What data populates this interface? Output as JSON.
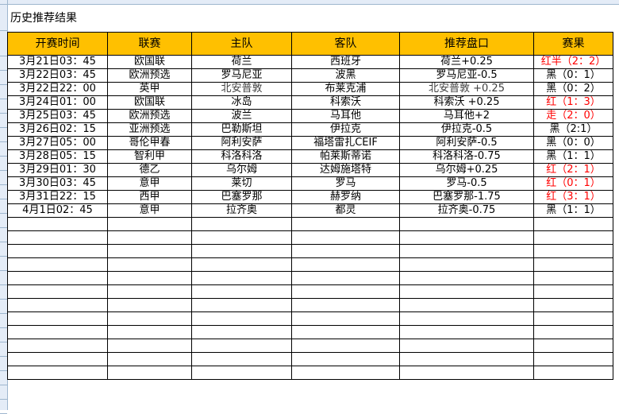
{
  "title": "历史推荐结果",
  "columns": [
    "开赛时间",
    "联赛",
    "主队",
    "客队",
    "推荐盘口",
    "赛果"
  ],
  "colors": {
    "header_bg": "#ffc000",
    "win": "#ff0000",
    "loss": "#000000"
  },
  "rows": [
    {
      "time": "3月21日03：45",
      "league": "欧国联",
      "home": "荷兰",
      "away": "西班牙",
      "pick": "荷兰+0.25",
      "result": "红半（2：2）",
      "status": "red"
    },
    {
      "time": "3月22日03：45",
      "league": "欧洲预选",
      "home": "罗马尼亚",
      "away": "波黑",
      "pick": "罗马尼亚-0.5",
      "result": "黑（0：1）",
      "status": "black"
    },
    {
      "time": "3月22日22：00",
      "league": "英甲",
      "home": "北安普敦",
      "away": "布莱克浦",
      "pick": "北安普敦 +0.25",
      "result": "黑（0：2）",
      "status": "black"
    },
    {
      "time": "3月24日01：00",
      "league": "欧国联",
      "home": "冰岛",
      "away": "科索沃",
      "pick": "科索沃 +0.25",
      "result": "红（1：3）",
      "status": "red"
    },
    {
      "time": "3月25日03：45",
      "league": "欧洲预选",
      "home": "波兰",
      "away": "马耳他",
      "pick": "马耳他+2",
      "result": "走（2：0）",
      "status": "red"
    },
    {
      "time": "3月26日02：15",
      "league": "亚洲预选",
      "home": "巴勒斯坦",
      "away": "伊拉克",
      "pick": "伊拉克-0.5",
      "result": "黑（2:1）",
      "status": "black"
    },
    {
      "time": "3月27日05：00",
      "league": "哥伦甲春",
      "home": "阿利安萨",
      "away": "福塔雷扎CEIF",
      "pick": "阿利安萨-0.5",
      "result": "黑（0：0）",
      "status": "black"
    },
    {
      "time": "3月28日05：15",
      "league": "智利甲",
      "home": "科洛科洛",
      "away": "帕莱斯蒂诺",
      "pick": "科洛科洛-0.75",
      "result": "黑（1：1）",
      "status": "black"
    },
    {
      "time": "3月29日01：30",
      "league": "德乙",
      "home": "乌尔姆",
      "away": "达姆施塔特",
      "pick": "乌尔姆+0.25",
      "result": "红（2：1）",
      "status": "red"
    },
    {
      "time": "3月30日03：45",
      "league": "意甲",
      "home": "莱切",
      "away": "罗马",
      "pick": "罗马-0.5",
      "result": "红（0：1）",
      "status": "red"
    },
    {
      "time": "3月31日22：15",
      "league": "西甲",
      "home": "巴塞罗那",
      "away": "赫罗纳",
      "pick": "巴塞罗那-1.75",
      "result": "红（3：1）",
      "status": "red"
    },
    {
      "time": "4月1日02：45",
      "league": "意甲",
      "home": "拉齐奥",
      "away": "都灵",
      "pick": "拉齐奥-0.75",
      "result": "黑（1：1）",
      "status": "black"
    }
  ]
}
